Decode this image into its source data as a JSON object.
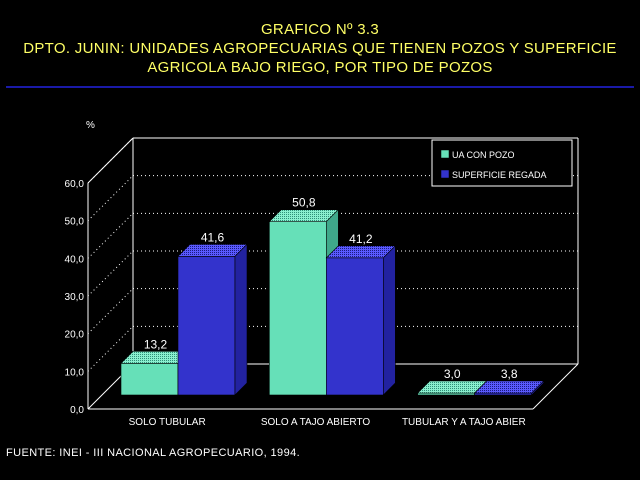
{
  "header": {
    "title_line1": "GRAFICO Nº 3.3",
    "title_line2": "DPTO. JUNIN: UNIDADES AGROPECUARIAS QUE TIENEN POZOS Y SUPERFICIE",
    "title_line3": "AGRICOLA BAJO RIEGO, POR TIPO DE POZOS"
  },
  "footer": {
    "source": "FUENTE: INEI - III NACIONAL AGROPECUARIO, 1994."
  },
  "colors": {
    "background": "#000000",
    "title": "#ffff66",
    "series_ua": "#66e0b8",
    "series_superficie": "#3333cc",
    "axis": "#ffffff"
  },
  "chart_data": {
    "type": "bar",
    "ylabel": "%",
    "categories": [
      "SOLO TUBULAR",
      "SOLO A TAJO ABIERTO",
      "TUBULAR Y A TAJO ABIER"
    ],
    "series": [
      {
        "name": "UA CON POZO",
        "values": [
          13.2,
          50.8,
          3.0
        ],
        "labels": [
          "13,2",
          "50,8",
          "3,0"
        ]
      },
      {
        "name": "SUPERFICIE REGADA",
        "values": [
          41.6,
          41.2,
          3.8
        ],
        "labels": [
          "41,6",
          "41,2",
          "3,8"
        ]
      }
    ],
    "ylim": [
      0,
      60
    ],
    "yticks": [
      "0,0",
      "10,0",
      "20,0",
      "30,0",
      "40,0",
      "50,0",
      "60,0"
    ],
    "grid": true,
    "legend_position": "top-right",
    "style": "3d"
  }
}
